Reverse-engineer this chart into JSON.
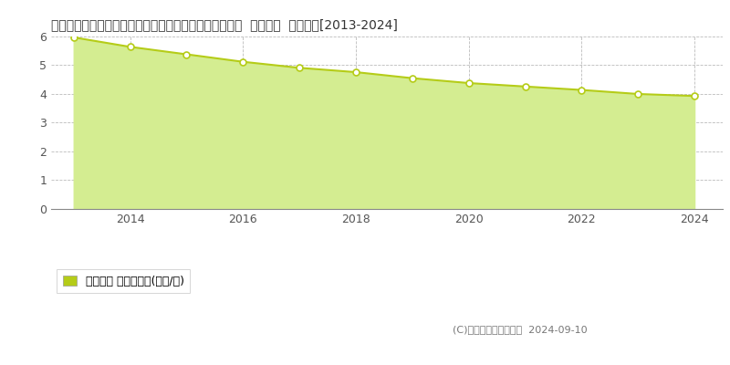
{
  "title": "鹿児島県熊毛郡南種子町中之上字橋口３０１９番１外内  地価公示  地価推移[2013-2024]",
  "years": [
    2013,
    2014,
    2015,
    2016,
    2017,
    2018,
    2019,
    2020,
    2021,
    2022,
    2023,
    2024
  ],
  "values": [
    5.97,
    5.64,
    5.38,
    5.12,
    4.91,
    4.76,
    4.55,
    4.38,
    4.26,
    4.14,
    4.0,
    3.93
  ],
  "line_color": "#b5cc18",
  "fill_color": "#d4ed91",
  "marker_color": "#ffffff",
  "marker_edge_color": "#b5cc18",
  "ylim": [
    0,
    6
  ],
  "yticks": [
    0,
    1,
    2,
    3,
    4,
    5,
    6
  ],
  "xlim_min": 2012.6,
  "xlim_max": 2024.5,
  "xticks": [
    2014,
    2016,
    2018,
    2020,
    2022,
    2024
  ],
  "grid_color": "#aaaaaa",
  "bg_color": "#ffffff",
  "legend_label": "地価公示 平均坪単価(万円/坪)",
  "legend_marker_color": "#b5cc18",
  "copyright_text": "(C)土地価格ドットコム  2024-09-10",
  "title_fontsize": 10,
  "tick_fontsize": 9,
  "legend_fontsize": 9
}
